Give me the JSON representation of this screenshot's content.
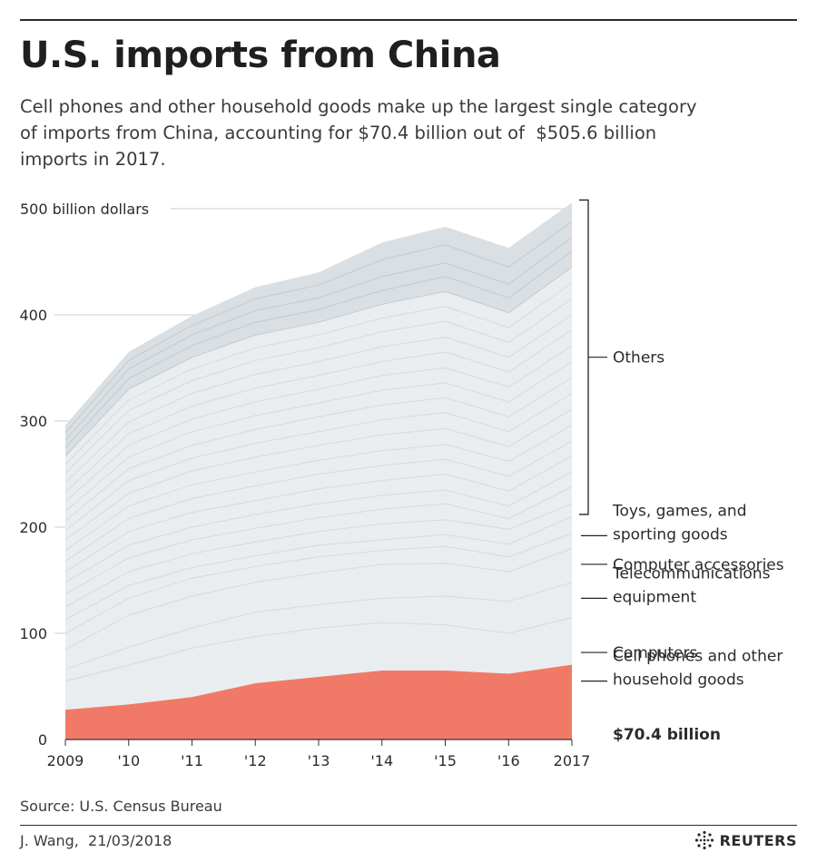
{
  "header": {
    "title": "U.S. imports from China",
    "subtitle_lines": [
      "Cell phones and other household goods make up the largest single category",
      "of imports from China, accounting for $70.4 billion out of  $505.6 billion",
      "imports in 2017."
    ]
  },
  "footer": {
    "source": "Source: U.S. Census Bureau",
    "credit": "J. Wang,  21/03/2018",
    "logo": "REUTERS"
  },
  "colors": {
    "cell_phones": "#f07a67",
    "others_fill": "#e9edf0",
    "others_top": "#d3dade",
    "grid": "#cccccc",
    "text": "#2b2b2b"
  },
  "chart_data": {
    "type": "area",
    "title": "U.S. imports from China",
    "xlabel": "",
    "ylabel": "500 billion dollars",
    "ylim": [
      0,
      500
    ],
    "yticks": [
      {
        "value": 0,
        "label": "0"
      },
      {
        "value": 100,
        "label": "100"
      },
      {
        "value": 200,
        "label": "200"
      },
      {
        "value": 300,
        "label": "300"
      },
      {
        "value": 400,
        "label": "400"
      },
      {
        "value": 500,
        "label": "500 billion dollars"
      }
    ],
    "x": [
      2009,
      2010,
      2011,
      2012,
      2013,
      2014,
      2015,
      2016,
      2017
    ],
    "x_tick_labels": [
      "2009",
      "'10",
      "'11",
      "'12",
      "'13",
      "'14",
      "'15",
      "'16",
      "2017"
    ],
    "cell_phones_series": {
      "name": "Cell phones and other household goods",
      "values": [
        28,
        33,
        40,
        53,
        59,
        65,
        65,
        62,
        70.4
      ]
    },
    "total_imports": [
      296,
      365,
      399,
      426,
      440,
      468,
      483,
      463,
      505.6
    ],
    "layer_boundaries": [
      [
        55,
        70,
        86,
        97,
        105,
        110,
        108,
        100,
        115
      ],
      [
        66,
        87,
        105,
        120,
        127,
        133,
        135,
        130,
        148
      ],
      [
        85,
        117,
        135,
        148,
        157,
        165,
        166,
        158,
        180
      ],
      [
        100,
        133,
        152,
        163,
        172,
        178,
        182,
        172,
        194
      ],
      [
        113,
        145,
        162,
        173,
        183,
        188,
        193,
        184,
        210
      ],
      [
        125,
        158,
        175,
        186,
        196,
        203,
        207,
        198,
        222
      ],
      [
        137,
        171,
        188,
        199,
        209,
        217,
        222,
        208,
        238
      ],
      [
        148,
        183,
        200,
        212,
        222,
        230,
        235,
        220,
        252
      ],
      [
        158,
        196,
        214,
        225,
        236,
        244,
        250,
        234,
        267
      ],
      [
        168,
        208,
        227,
        239,
        250,
        258,
        264,
        248,
        281
      ],
      [
        178,
        220,
        240,
        252,
        263,
        272,
        278,
        262,
        296
      ],
      [
        188,
        232,
        253,
        266,
        277,
        287,
        293,
        276,
        311
      ],
      [
        197,
        244,
        265,
        279,
        290,
        301,
        308,
        290,
        326
      ],
      [
        206,
        255,
        277,
        292,
        304,
        315,
        322,
        304,
        341
      ],
      [
        215,
        266,
        290,
        305,
        317,
        329,
        336,
        318,
        356
      ],
      [
        224,
        277,
        302,
        318,
        330,
        343,
        350,
        332,
        371
      ],
      [
        233,
        288,
        314,
        331,
        343,
        356,
        365,
        346,
        386
      ],
      [
        242,
        299,
        326,
        344,
        356,
        370,
        379,
        360,
        400
      ],
      [
        251,
        310,
        338,
        357,
        369,
        384,
        394,
        374,
        415
      ],
      [
        259,
        320,
        349,
        369,
        381,
        397,
        408,
        388,
        430
      ],
      [
        267,
        330,
        360,
        381,
        393,
        410,
        422,
        402,
        445
      ],
      [
        275,
        340,
        371,
        393,
        405,
        423,
        436,
        416,
        460
      ],
      [
        282,
        349,
        381,
        404,
        416,
        436,
        449,
        429,
        473
      ],
      [
        289,
        357,
        390,
        415,
        428,
        452,
        466,
        445,
        488
      ]
    ],
    "annotations": [
      {
        "name": "others",
        "lines": [
          "Others"
        ],
        "bracket": [
          212,
          505.6
        ],
        "bold": false
      },
      {
        "name": "toys",
        "lines": [
          "Toys, games, and",
          "sporting goods"
        ],
        "value": 192,
        "bold": false
      },
      {
        "name": "computer-accessories",
        "lines": [
          "Computer accessories"
        ],
        "value": 165,
        "bold": false
      },
      {
        "name": "telecom",
        "lines": [
          "Telecommunications",
          "equipment"
        ],
        "value": 133,
        "bold": false
      },
      {
        "name": "computers",
        "lines": [
          "Computers"
        ],
        "value": 82,
        "bold": false
      },
      {
        "name": "cell-phones",
        "lines": [
          "Cell phones and other",
          "household goods"
        ],
        "value": 55,
        "bold": false
      },
      {
        "name": "cell-phones-value",
        "lines": [
          "$70.4 billion"
        ],
        "bold": true
      }
    ]
  }
}
